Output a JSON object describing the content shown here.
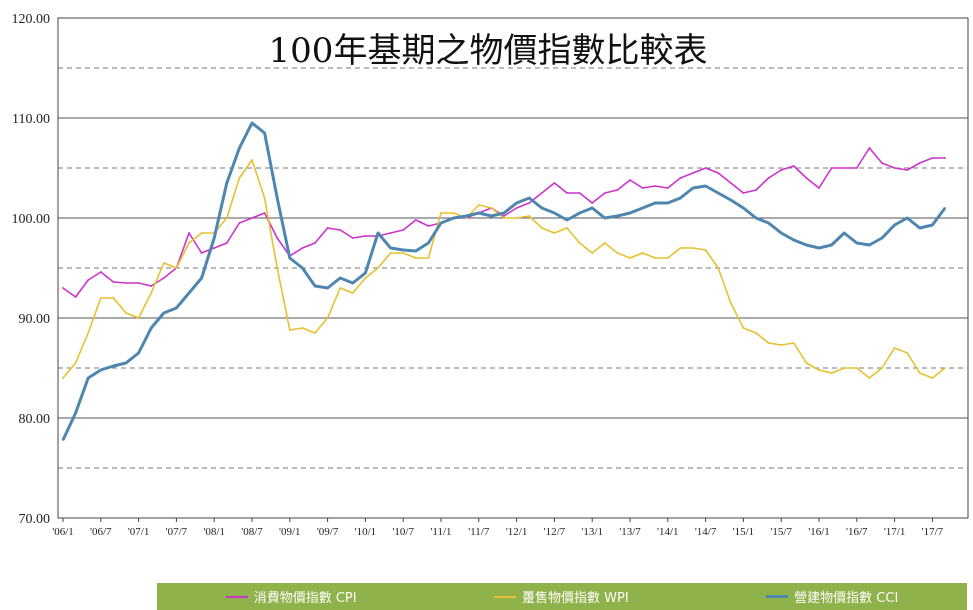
{
  "chart_data": {
    "type": "line",
    "title": "100年基期之物價指數比較表",
    "ylim": [
      70,
      120
    ],
    "yticks": [
      "70.00",
      "80.00",
      "90.00",
      "100.00",
      "110.00",
      "120.00"
    ],
    "xtick_labels": [
      "'06/1",
      "'06/7",
      "'07/1",
      "'07/7",
      "'08/1",
      "'08/7",
      "'09/1",
      "'09/7",
      "'10/1",
      "'10/7",
      "'11/1",
      "'11/7",
      "'12/1",
      "'12/7",
      "'13/1",
      "'13/7",
      "'14/1",
      "'14/7",
      "'15/1",
      "'15/7",
      "'16/1",
      "'16/7",
      "'17/1",
      "'17/7"
    ],
    "grid": true,
    "legend_position": "bottom",
    "series": [
      {
        "name": "消費物價指數 CPI",
        "color": "#cc33cc",
        "points": [
          [
            "'06/1",
            93.0
          ],
          [
            "'06/3",
            92.1
          ],
          [
            "'06/5",
            93.8
          ],
          [
            "'06/7",
            94.6
          ],
          [
            "'06/9",
            93.6
          ],
          [
            "'06/11",
            93.5
          ],
          [
            "'07/1",
            93.5
          ],
          [
            "'07/3",
            93.2
          ],
          [
            "'07/5",
            94.0
          ],
          [
            "'07/7",
            95.0
          ],
          [
            "'07/9",
            98.5
          ],
          [
            "'07/11",
            96.5
          ],
          [
            "'08/1",
            97.0
          ],
          [
            "'08/3",
            97.5
          ],
          [
            "'08/5",
            99.5
          ],
          [
            "'08/7",
            100.0
          ],
          [
            "'08/9",
            100.5
          ],
          [
            "'08/11",
            98.0
          ],
          [
            "'09/1",
            96.2
          ],
          [
            "'09/3",
            97.0
          ],
          [
            "'09/5",
            97.5
          ],
          [
            "'09/7",
            99.0
          ],
          [
            "'09/9",
            98.8
          ],
          [
            "'09/11",
            98.0
          ],
          [
            "'10/1",
            98.2
          ],
          [
            "'10/3",
            98.2
          ],
          [
            "'10/5",
            98.5
          ],
          [
            "'10/7",
            98.8
          ],
          [
            "'10/9",
            99.8
          ],
          [
            "'10/11",
            99.2
          ],
          [
            "'11/1",
            99.5
          ],
          [
            "'11/3",
            100.0
          ],
          [
            "'11/5",
            100.0
          ],
          [
            "'11/7",
            100.5
          ],
          [
            "'11/9",
            101.0
          ],
          [
            "'11/11",
            100.2
          ],
          [
            "'12/1",
            101.0
          ],
          [
            "'12/3",
            101.5
          ],
          [
            "'12/5",
            102.5
          ],
          [
            "'12/7",
            103.5
          ],
          [
            "'12/9",
            102.5
          ],
          [
            "'12/11",
            102.5
          ],
          [
            "'13/1",
            101.5
          ],
          [
            "'13/3",
            102.5
          ],
          [
            "'13/5",
            102.8
          ],
          [
            "'13/7",
            103.8
          ],
          [
            "'13/9",
            103.0
          ],
          [
            "'13/11",
            103.2
          ],
          [
            "'14/1",
            103.0
          ],
          [
            "'14/3",
            104.0
          ],
          [
            "'14/5",
            104.5
          ],
          [
            "'14/7",
            105.0
          ],
          [
            "'14/9",
            104.5
          ],
          [
            "'14/11",
            103.5
          ],
          [
            "'15/1",
            102.5
          ],
          [
            "'15/3",
            102.8
          ],
          [
            "'15/5",
            104.0
          ],
          [
            "'15/7",
            104.8
          ],
          [
            "'15/9",
            105.2
          ],
          [
            "'15/11",
            104.0
          ],
          [
            "'16/1",
            103.0
          ],
          [
            "'16/3",
            105.0
          ],
          [
            "'16/5",
            105.0
          ],
          [
            "'16/7",
            105.0
          ],
          [
            "'16/9",
            107.0
          ],
          [
            "'16/11",
            105.5
          ],
          [
            "'17/1",
            105.0
          ],
          [
            "'17/3",
            104.8
          ],
          [
            "'17/5",
            105.5
          ],
          [
            "'17/7",
            106.0
          ],
          [
            "'17/9",
            106.0
          ]
        ]
      },
      {
        "name": "躉售物價指數 WPI",
        "color": "#e8c030",
        "points": [
          [
            "'06/1",
            84.0
          ],
          [
            "'06/3",
            85.5
          ],
          [
            "'06/5",
            88.5
          ],
          [
            "'06/7",
            92.0
          ],
          [
            "'06/9",
            92.0
          ],
          [
            "'06/11",
            90.5
          ],
          [
            "'07/1",
            90.0
          ],
          [
            "'07/3",
            92.5
          ],
          [
            "'07/5",
            95.5
          ],
          [
            "'07/7",
            95.0
          ],
          [
            "'07/9",
            97.5
          ],
          [
            "'07/11",
            98.5
          ],
          [
            "'08/1",
            98.5
          ],
          [
            "'08/3",
            100.0
          ],
          [
            "'08/5",
            104.0
          ],
          [
            "'08/7",
            105.8
          ],
          [
            "'08/9",
            102.0
          ],
          [
            "'08/11",
            95.0
          ],
          [
            "'09/1",
            88.8
          ],
          [
            "'09/3",
            89.0
          ],
          [
            "'09/5",
            88.5
          ],
          [
            "'09/7",
            90.0
          ],
          [
            "'09/9",
            93.0
          ],
          [
            "'09/11",
            92.5
          ],
          [
            "'10/1",
            94.0
          ],
          [
            "'10/3",
            95.0
          ],
          [
            "'10/5",
            96.5
          ],
          [
            "'10/7",
            96.5
          ],
          [
            "'10/9",
            96.0
          ],
          [
            "'10/11",
            96.0
          ],
          [
            "'11/1",
            100.5
          ],
          [
            "'11/3",
            100.5
          ],
          [
            "'11/5",
            100.0
          ],
          [
            "'11/7",
            101.3
          ],
          [
            "'11/9",
            101.0
          ],
          [
            "'11/11",
            100.0
          ],
          [
            "'12/1",
            100.0
          ],
          [
            "'12/3",
            100.2
          ],
          [
            "'12/5",
            99.0
          ],
          [
            "'12/7",
            98.5
          ],
          [
            "'12/9",
            99.0
          ],
          [
            "'12/11",
            97.5
          ],
          [
            "'13/1",
            96.5
          ],
          [
            "'13/3",
            97.5
          ],
          [
            "'13/5",
            96.5
          ],
          [
            "'13/7",
            96.0
          ],
          [
            "'13/9",
            96.5
          ],
          [
            "'13/11",
            96.0
          ],
          [
            "'14/1",
            96.0
          ],
          [
            "'14/3",
            97.0
          ],
          [
            "'14/5",
            97.0
          ],
          [
            "'14/7",
            96.8
          ],
          [
            "'14/9",
            95.0
          ],
          [
            "'14/11",
            91.5
          ],
          [
            "'15/1",
            89.0
          ],
          [
            "'15/3",
            88.5
          ],
          [
            "'15/5",
            87.5
          ],
          [
            "'15/7",
            87.3
          ],
          [
            "'15/9",
            87.5
          ],
          [
            "'15/11",
            85.5
          ],
          [
            "'16/1",
            84.8
          ],
          [
            "'16/3",
            84.5
          ],
          [
            "'16/5",
            85.0
          ],
          [
            "'16/7",
            85.0
          ],
          [
            "'16/9",
            84.0
          ],
          [
            "'16/11",
            85.0
          ],
          [
            "'17/1",
            87.0
          ],
          [
            "'17/3",
            86.5
          ],
          [
            "'17/5",
            84.5
          ],
          [
            "'17/7",
            84.0
          ],
          [
            "'17/9",
            85.0
          ]
        ]
      },
      {
        "name": "營建物價指數 CCI",
        "color": "#4f86b0",
        "points": [
          [
            "'06/1",
            77.8
          ],
          [
            "'06/3",
            80.5
          ],
          [
            "'06/5",
            84.0
          ],
          [
            "'06/7",
            84.8
          ],
          [
            "'06/9",
            85.2
          ],
          [
            "'06/11",
            85.5
          ],
          [
            "'07/1",
            86.5
          ],
          [
            "'07/3",
            89.0
          ],
          [
            "'07/5",
            90.5
          ],
          [
            "'07/7",
            91.0
          ],
          [
            "'07/9",
            92.5
          ],
          [
            "'07/11",
            94.0
          ],
          [
            "'08/1",
            98.0
          ],
          [
            "'08/3",
            103.5
          ],
          [
            "'08/5",
            107.0
          ],
          [
            "'08/7",
            109.5
          ],
          [
            "'08/9",
            108.5
          ],
          [
            "'08/11",
            102.0
          ],
          [
            "'09/1",
            96.0
          ],
          [
            "'09/3",
            95.0
          ],
          [
            "'09/5",
            93.2
          ],
          [
            "'09/7",
            93.0
          ],
          [
            "'09/9",
            94.0
          ],
          [
            "'09/11",
            93.5
          ],
          [
            "'10/1",
            94.5
          ],
          [
            "'10/3",
            98.5
          ],
          [
            "'10/5",
            97.0
          ],
          [
            "'10/7",
            96.8
          ],
          [
            "'10/9",
            96.7
          ],
          [
            "'10/11",
            97.5
          ],
          [
            "'11/1",
            99.5
          ],
          [
            "'11/3",
            100.0
          ],
          [
            "'11/5",
            100.2
          ],
          [
            "'11/7",
            100.5
          ],
          [
            "'11/9",
            100.2
          ],
          [
            "'11/11",
            100.5
          ],
          [
            "'12/1",
            101.5
          ],
          [
            "'12/3",
            102.0
          ],
          [
            "'12/5",
            101.0
          ],
          [
            "'12/7",
            100.5
          ],
          [
            "'12/9",
            99.8
          ],
          [
            "'12/11",
            100.5
          ],
          [
            "'13/1",
            101.0
          ],
          [
            "'13/3",
            100.0
          ],
          [
            "'13/5",
            100.2
          ],
          [
            "'13/7",
            100.5
          ],
          [
            "'13/9",
            101.0
          ],
          [
            "'13/11",
            101.5
          ],
          [
            "'14/1",
            101.5
          ],
          [
            "'14/3",
            102.0
          ],
          [
            "'14/5",
            103.0
          ],
          [
            "'14/7",
            103.2
          ],
          [
            "'14/9",
            102.5
          ],
          [
            "'14/11",
            101.8
          ],
          [
            "'15/1",
            101.0
          ],
          [
            "'15/3",
            100.0
          ],
          [
            "'15/5",
            99.5
          ],
          [
            "'15/7",
            98.5
          ],
          [
            "'15/9",
            97.8
          ],
          [
            "'15/11",
            97.3
          ],
          [
            "'16/1",
            97.0
          ],
          [
            "'16/3",
            97.3
          ],
          [
            "'16/5",
            98.5
          ],
          [
            "'16/7",
            97.5
          ],
          [
            "'16/9",
            97.3
          ],
          [
            "'16/11",
            98.0
          ],
          [
            "'17/1",
            99.3
          ],
          [
            "'17/3",
            100.0
          ],
          [
            "'17/5",
            99.0
          ],
          [
            "'17/7",
            99.3
          ],
          [
            "'17/9",
            101.0
          ]
        ]
      }
    ]
  }
}
